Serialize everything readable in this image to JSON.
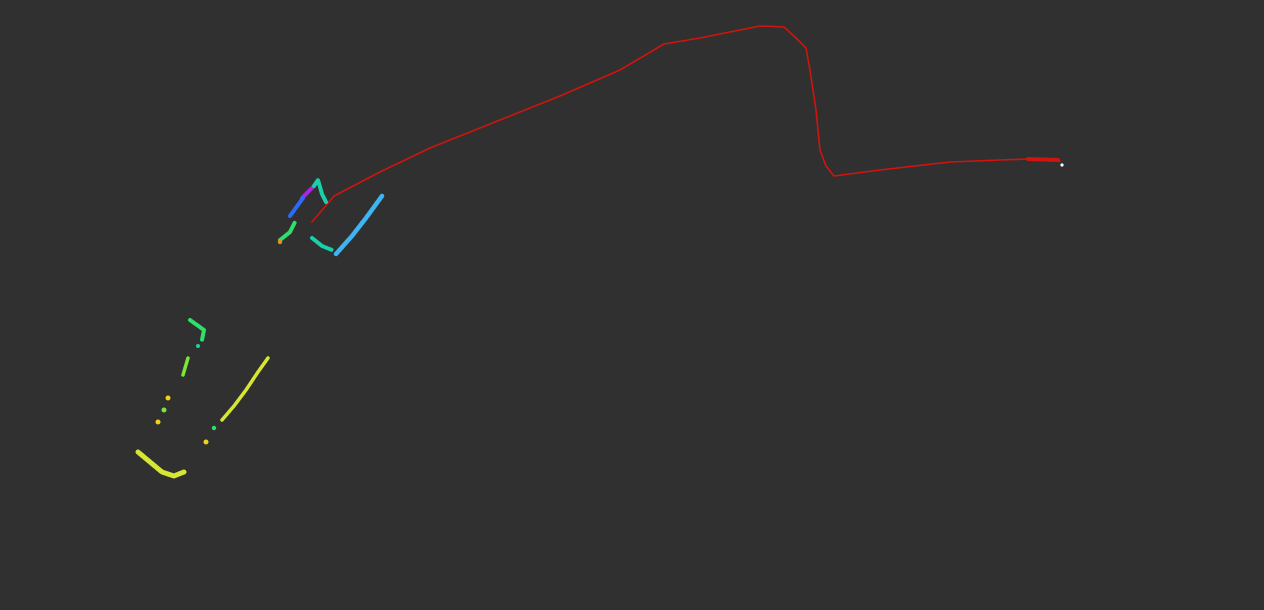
{
  "scene": {
    "background_color": "#303030",
    "trajectory_color": "#d0140e",
    "robot_marker_color": "#ffffff",
    "scan_segment_colors": {
      "violet": "#b41ee6",
      "blue": "#2a6cf5",
      "cyan": "#22b0ea",
      "sky": "#3fb4f2",
      "teal": "#1ad0a8",
      "green": "#2ee06a",
      "lime": "#7be63a",
      "yellow": "#d6e633",
      "gold": "#f0d21a",
      "orange": "#f08a20"
    }
  }
}
